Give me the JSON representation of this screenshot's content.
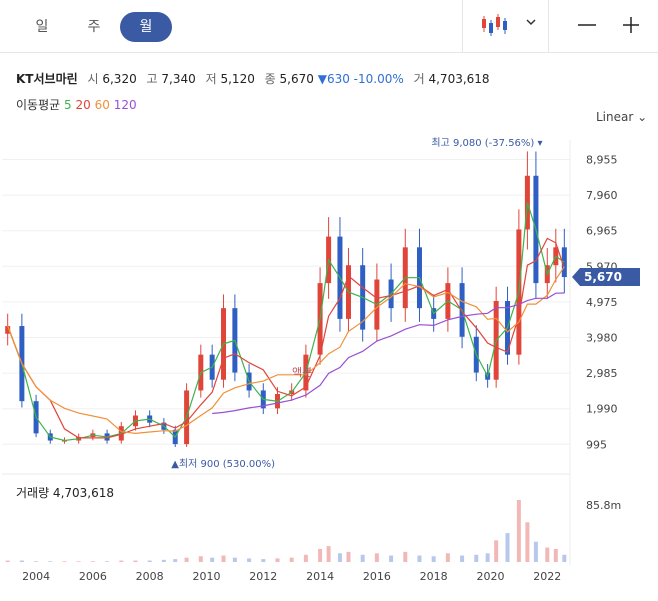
{
  "tabs": [
    "일",
    "주",
    "월"
  ],
  "active_tab": 2,
  "info": {
    "name": "KT서브마린",
    "open_label": "시",
    "open": "6,320",
    "high_label": "고",
    "high": "7,340",
    "low_label": "저",
    "low": "5,120",
    "close_label": "종",
    "close": "5,670",
    "change": "▼630 -10.00%",
    "vol_label": "거",
    "volume": "4,703,618"
  },
  "ma": {
    "label": "이동평균",
    "periods": [
      "5",
      "20",
      "60",
      "120"
    ],
    "colors": [
      "#3cb44b",
      "#e0453a",
      "#f0913a",
      "#9a4fd6"
    ]
  },
  "scale_label": "Linear",
  "volume_label": "거래량 4,703,618",
  "colors": {
    "up": "#e0453a",
    "down": "#2f5fc2",
    "accent": "#3a5aa3",
    "vol_up": "#f2b8b8",
    "vol_down": "#b8c8ec"
  },
  "chart_data": {
    "type": "candlestick",
    "title": "KT서브마린",
    "x_ticks": [
      "2004",
      "2006",
      "2008",
      "2010",
      "2012",
      "2014",
      "2016",
      "2018",
      "2020",
      "2022"
    ],
    "y_ticks": [
      995,
      1990,
      2985,
      3980,
      4975,
      5970,
      6965,
      7960,
      8955
    ],
    "ylim": [
      500,
      9500
    ],
    "current_price": 5670,
    "current_price_label": "5,670",
    "high_annotation": "최고 9,080 (-37.56%)",
    "low_annotation": "최저 900 (530.00%)",
    "area_label": "액분",
    "volume_axis_label": "85.8m",
    "x": [
      2003.0,
      2003.5,
      2004.0,
      2004.5,
      2005.0,
      2005.5,
      2006.0,
      2006.5,
      2007.0,
      2007.5,
      2008.0,
      2008.5,
      2008.9,
      2009.3,
      2009.8,
      2010.2,
      2010.6,
      2011.0,
      2011.5,
      2012.0,
      2012.5,
      2013.0,
      2013.5,
      2014.0,
      2014.3,
      2014.7,
      2015.0,
      2015.5,
      2016.0,
      2016.5,
      2017.0,
      2017.5,
      2018.0,
      2018.5,
      2019.0,
      2019.5,
      2019.9,
      2020.2,
      2020.6,
      2021.0,
      2021.3,
      2021.6,
      2022.0,
      2022.3,
      2022.6
    ],
    "close": [
      4300,
      2200,
      1300,
      1100,
      1100,
      1200,
      1300,
      1100,
      1500,
      1800,
      1600,
      1400,
      1000,
      2500,
      3500,
      2800,
      4800,
      3000,
      2500,
      2000,
      2400,
      2500,
      3500,
      5500,
      6800,
      4500,
      6000,
      4200,
      5600,
      4800,
      6500,
      4800,
      4500,
      5500,
      4000,
      3000,
      2800,
      5000,
      3500,
      7000,
      8500,
      5500,
      6000,
      6500,
      5670
    ],
    "volume_max": 85.8,
    "volume_millions": [
      2,
      2,
      1,
      1,
      1,
      1,
      1,
      1,
      2,
      2,
      2,
      3,
      4,
      6,
      8,
      6,
      9,
      6,
      5,
      4,
      5,
      6,
      10,
      18,
      22,
      12,
      14,
      10,
      12,
      9,
      14,
      9,
      8,
      12,
      9,
      10,
      12,
      30,
      40,
      85.8,
      55,
      28,
      20,
      18,
      10
    ]
  }
}
